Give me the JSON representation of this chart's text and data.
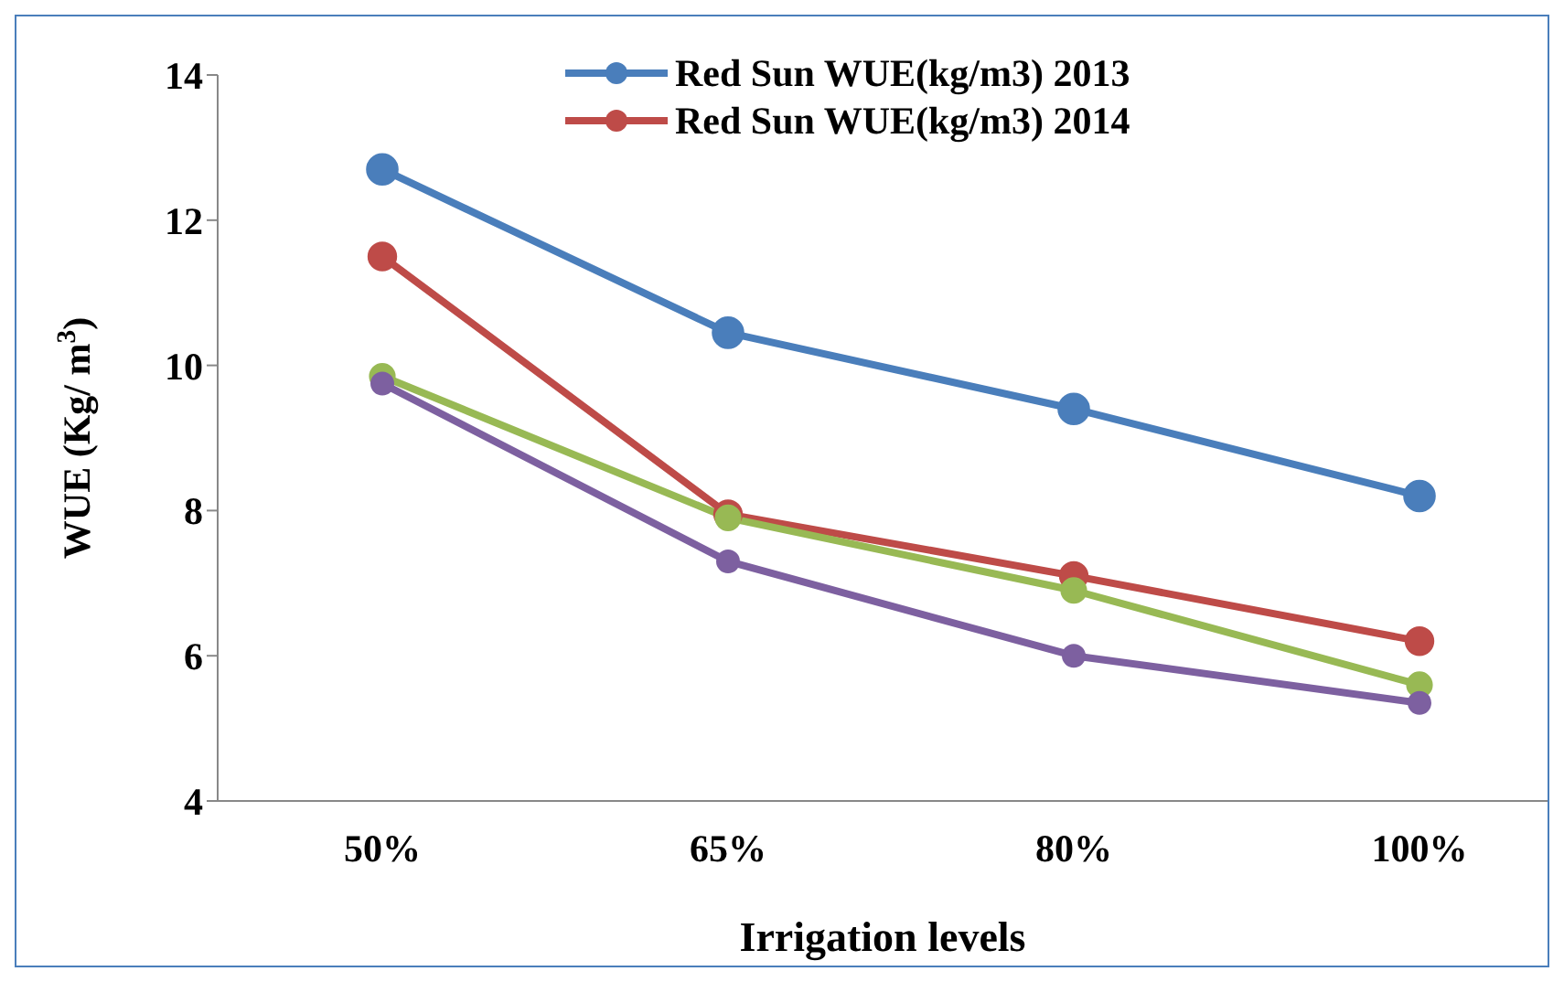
{
  "chart_data": {
    "type": "line",
    "xlabel": "Irrigation levels",
    "ylabel": "WUE (Kg/ m$^{3}$)",
    "categories": [
      "50%",
      "65%",
      "80%",
      "100%"
    ],
    "series": [
      {
        "name": "Red Sun WUE(kg/m3) 2013",
        "color": "#4a7ebb",
        "values": [
          12.7,
          10.45,
          9.4,
          8.2
        ]
      },
      {
        "name": "Red Sun WUE(kg/m3) 2014",
        "color": "#be4b48",
        "values": [
          11.5,
          7.95,
          7.1,
          6.2
        ]
      },
      {
        "color": "#98b954",
        "values": [
          9.85,
          7.9,
          6.9,
          5.6
        ]
      },
      {
        "color": "#7d60a0",
        "values": [
          9.75,
          7.3,
          6.0,
          5.35
        ]
      }
    ],
    "ylim": [
      4,
      14
    ],
    "yticks": [
      4,
      6,
      8,
      10,
      12,
      14
    ],
    "grid": false,
    "legend": "top",
    "marker": "circle",
    "line_style": "solid"
  }
}
